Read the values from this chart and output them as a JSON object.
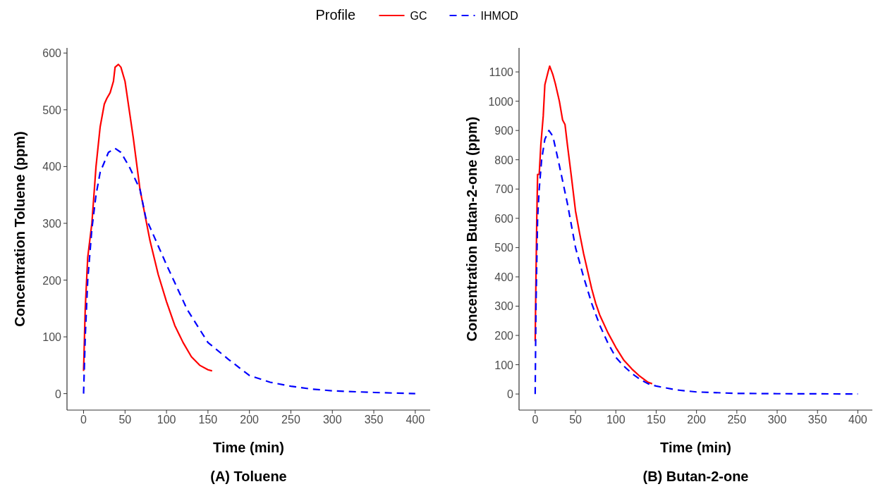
{
  "chart_data": [
    {
      "type": "line",
      "title": "(A)  Toluene",
      "xlabel": "Time (min)",
      "ylabel": "Concentration Toluene (ppm)",
      "legend": "top",
      "legend_title": "Profile",
      "xlim": [
        -20,
        418
      ],
      "xticks": [
        0,
        50,
        100,
        150,
        200,
        250,
        300,
        350,
        400
      ],
      "ylim": [
        -29,
        609
      ],
      "yticks": [
        0,
        100,
        200,
        300,
        400,
        500,
        600
      ],
      "series": [
        {
          "name": "GC",
          "color": "#ff0000",
          "line_style": "solid",
          "x": [
            0,
            2,
            5,
            10,
            15,
            20,
            25,
            28,
            32,
            36,
            38,
            42,
            45,
            50,
            55,
            60,
            68,
            80,
            90,
            100,
            110,
            120,
            130,
            140,
            150,
            155
          ],
          "values": [
            40,
            150,
            240,
            300,
            400,
            470,
            510,
            520,
            530,
            550,
            575,
            580,
            575,
            550,
            500,
            450,
            360,
            270,
            210,
            162,
            120,
            90,
            65,
            50,
            42,
            40
          ]
        },
        {
          "name": "IHMOD",
          "color": "#0000ff",
          "line_style": "dashed",
          "x": [
            0,
            2,
            5,
            10,
            15,
            20,
            30,
            38,
            45,
            55,
            68,
            75,
            100,
            125,
            150,
            175,
            200,
            225,
            250,
            275,
            300,
            350,
            400
          ],
          "values": [
            0,
            100,
            200,
            290,
            350,
            390,
            425,
            432,
            425,
            400,
            360,
            310,
            227,
            148,
            90,
            60,
            32,
            20,
            13,
            8,
            5,
            2,
            0
          ]
        }
      ]
    },
    {
      "type": "line",
      "title": "(B)  Butan-2-one",
      "xlabel": "Time (min)",
      "ylabel": "Concentration Butan-2-one (ppm)",
      "xlim": [
        -20,
        418
      ],
      "xticks": [
        0,
        50,
        100,
        150,
        200,
        250,
        300,
        350,
        400
      ],
      "ylim": [
        -55,
        1182
      ],
      "yticks": [
        0,
        100,
        200,
        300,
        400,
        500,
        600,
        700,
        800,
        900,
        1000,
        1100
      ],
      "series": [
        {
          "color": "#ff0000",
          "line_style": "solid",
          "x": [
            0,
            1,
            2,
            3,
            5,
            7,
            10,
            12,
            16,
            18,
            22,
            25,
            30,
            34,
            37,
            40,
            45,
            50,
            55,
            60,
            70,
            75,
            80,
            90,
            100,
            110,
            120,
            130,
            140,
            145
          ],
          "values": [
            180,
            400,
            600,
            750,
            750,
            850,
            950,
            1056,
            1100,
            1120,
            1090,
            1060,
            1000,
            936,
            920,
            850,
            740,
            625,
            550,
            480,
            360,
            310,
            270,
            210,
            159,
            115,
            85,
            60,
            40,
            35
          ]
        },
        {
          "color": "#0000ff",
          "line_style": "dashed",
          "x": [
            0,
            1,
            3,
            5,
            8,
            12,
            17,
            22,
            30,
            40,
            50,
            60,
            70,
            80,
            90,
            100,
            110,
            120,
            130,
            140,
            150,
            175,
            200,
            250,
            300,
            400
          ],
          "values": [
            0,
            300,
            600,
            700,
            800,
            870,
            900,
            880,
            780,
            650,
            500,
            400,
            310,
            235,
            175,
            125,
            95,
            70,
            50,
            35,
            27,
            14,
            7,
            2,
            1,
            0
          ]
        }
      ]
    }
  ]
}
